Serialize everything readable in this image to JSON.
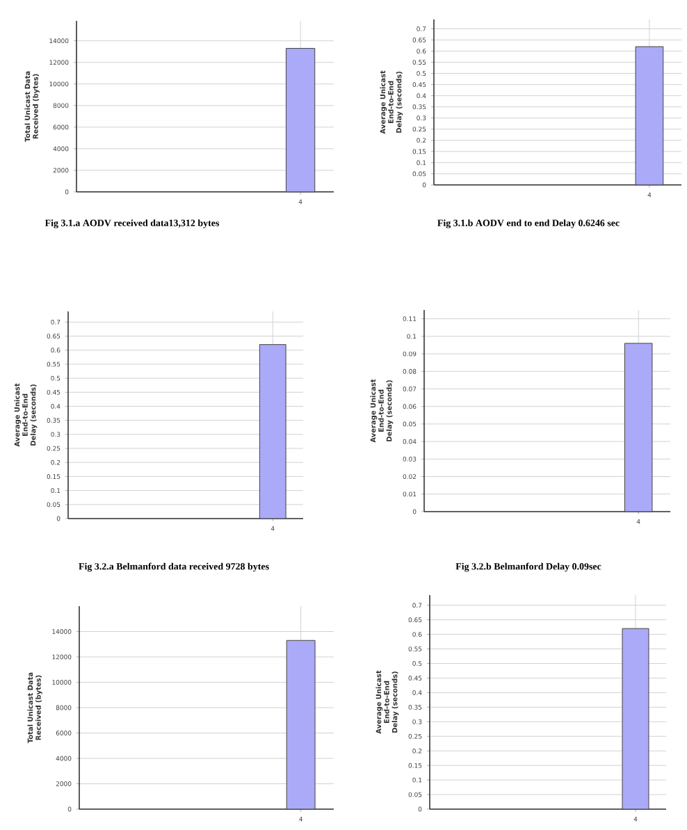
{
  "chart_data": [
    {
      "type": "bar",
      "categories": [
        "4"
      ],
      "values": [
        13300
      ],
      "color": "#aaaaf8",
      "ylabel": "Total Unicast Data Received (bytes)",
      "ylim": [
        0,
        15850
      ],
      "yticks": [
        0,
        2000,
        4000,
        6000,
        8000,
        10000,
        12000,
        14000
      ],
      "grid": true,
      "annotations": [
        "Fig 3.1.a   AODV received data13,312 bytes"
      ]
    },
    {
      "type": "bar",
      "categories": [
        "4"
      ],
      "values": [
        0.62
      ],
      "color": "#aaaaf8",
      "ylabel": "Average Unicast End-to-End Delay (seconds)",
      "ylim": [
        0,
        0.742
      ],
      "yticks": [
        0,
        0.05,
        0.1,
        0.15,
        0.2,
        0.25,
        0.3,
        0.35,
        0.4,
        0.45,
        0.5,
        0.55,
        0.6,
        0.65,
        0.7
      ],
      "grid": true,
      "annotations": [
        "Fig 3.1.b  AODV end to end Delay 0.6246 sec"
      ]
    },
    {
      "type": "bar",
      "categories": [
        "4"
      ],
      "values": [
        0.62
      ],
      "color": "#aaaaf8",
      "ylabel": "Average Unicast End-to-End Delay (seconds)",
      "ylim": [
        0,
        0.738
      ],
      "yticks": [
        0,
        0.05,
        0.1,
        0.15,
        0.2,
        0.25,
        0.3,
        0.35,
        0.4,
        0.45,
        0.5,
        0.55,
        0.6,
        0.65,
        0.7
      ],
      "grid": true,
      "annotations": [
        "Fig 3.2.a   Belmanford data received 9728 bytes"
      ]
    },
    {
      "type": "bar",
      "categories": [
        "4"
      ],
      "values": [
        0.096
      ],
      "color": "#aaaaf8",
      "ylabel": "Average Unicast End-to-End Delay (seconds)",
      "ylim": [
        0,
        0.115
      ],
      "yticks": [
        0,
        0.01,
        0.02,
        0.03,
        0.04,
        0.05,
        0.06,
        0.07,
        0.08,
        0.09,
        0.1,
        0.11
      ],
      "grid": true,
      "annotations": [
        "Fig 3.2.b   Belmanford Delay 0.09sec"
      ]
    },
    {
      "type": "bar",
      "categories": [
        "4"
      ],
      "values": [
        13300
      ],
      "color": "#aaaaf8",
      "ylabel": "Total Unicast Data Received (bytes)",
      "ylim": [
        0,
        16000
      ],
      "yticks": [
        0,
        2000,
        4000,
        6000,
        8000,
        10000,
        12000,
        14000
      ],
      "grid": true
    },
    {
      "type": "bar",
      "categories": [
        "4"
      ],
      "values": [
        0.62
      ],
      "color": "#aaaaf8",
      "ylabel": "Average Unicast End-to-End Delay (seconds)",
      "ylim": [
        0,
        0.735
      ],
      "yticks": [
        0,
        0.05,
        0.1,
        0.15,
        0.2,
        0.25,
        0.3,
        0.35,
        0.4,
        0.45,
        0.5,
        0.55,
        0.6,
        0.65,
        0.7
      ],
      "grid": true
    }
  ]
}
